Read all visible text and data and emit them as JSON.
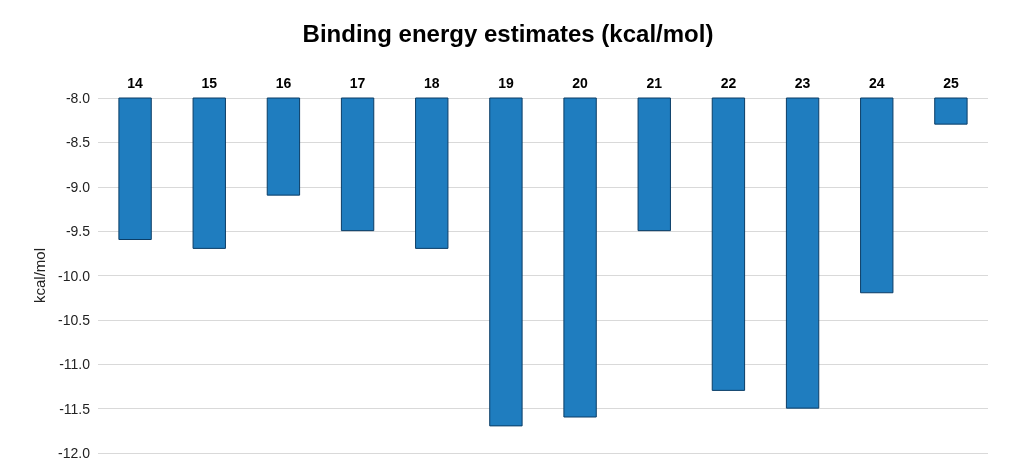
{
  "chart_data": {
    "type": "bar",
    "title": "Binding energy estimates (kcal/mol)",
    "ylabel": "kcal/mol",
    "categories": [
      "14",
      "15",
      "16",
      "17",
      "18",
      "19",
      "20",
      "21",
      "22",
      "23",
      "24",
      "25"
    ],
    "values": [
      -9.6,
      -9.7,
      -9.1,
      -9.5,
      -9.7,
      -11.7,
      -11.6,
      -9.5,
      -11.3,
      -11.5,
      -10.2,
      -8.3
    ],
    "color": "#1f7dbf",
    "ylim": [
      -12,
      -8
    ],
    "yticks": [
      {
        "value": -12,
        "label": "-12.0"
      },
      {
        "value": -11.5,
        "label": "-11.5"
      },
      {
        "value": -11,
        "label": "-11.0"
      },
      {
        "value": -10.5,
        "label": "-10.5"
      },
      {
        "value": -10,
        "label": "-10.0"
      },
      {
        "value": -9.5,
        "label": "-9.5"
      },
      {
        "value": -9,
        "label": "-9.0"
      },
      {
        "value": -8.5,
        "label": "-8.5"
      },
      {
        "value": -8,
        "label": "-8.0"
      }
    ],
    "grid": true
  }
}
